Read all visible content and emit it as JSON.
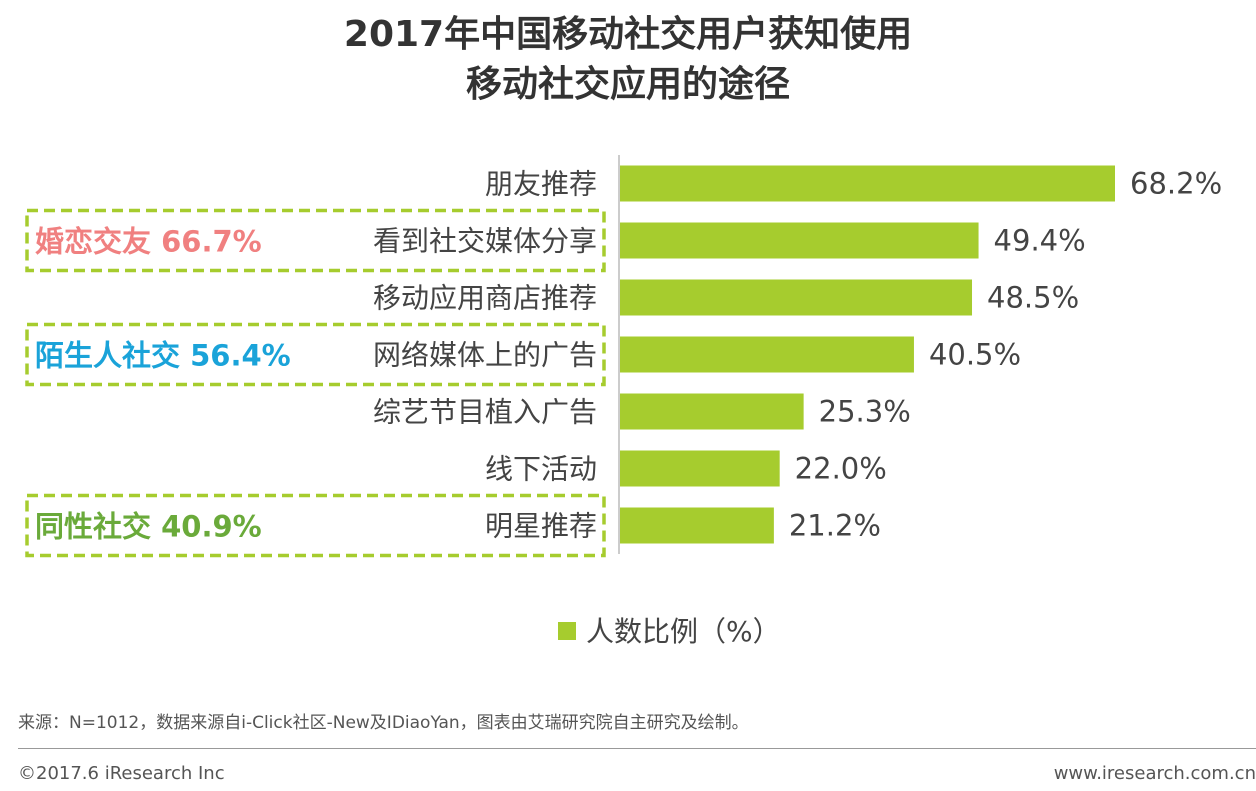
{
  "title_line1": "2017年中国移动社交用户获知使用",
  "title_line2": "移动社交应用的途径",
  "chart_data": {
    "type": "bar",
    "orientation": "horizontal",
    "categories": [
      "朋友推荐",
      "看到社交媒体分享",
      "移动应用商店推荐",
      "网络媒体上的广告",
      "综艺节目植入广告",
      "线下活动",
      "明星推荐"
    ],
    "values": [
      68.2,
      49.4,
      48.5,
      40.5,
      25.3,
      22.0,
      21.2
    ],
    "value_labels": [
      "68.2%",
      "49.4%",
      "48.5%",
      "40.5%",
      "25.3%",
      "22.0%",
      "21.2%"
    ],
    "xlim": [
      0,
      70
    ],
    "series_name": "人数比例（%）",
    "bar_color": "#a6cc2e",
    "legend_position": "bottom-center",
    "annotations": [
      {
        "category_index": 1,
        "text": "婚恋交友 66.7%",
        "color": "#f08080"
      },
      {
        "category_index": 3,
        "text": "陌生人社交 56.4%",
        "color": "#1aa3d9"
      },
      {
        "category_index": 6,
        "text": "同性社交 40.9%",
        "color": "#6aaa3a"
      }
    ],
    "annotation_box_color": "#a6cc2e"
  },
  "footer": {
    "source": "来源：N=1012，数据来源自i-Click社区-New及IDiaoYan，图表由艾瑞研究院自主研究及绘制。",
    "copyright": "©2017.6 iResearch Inc",
    "url": "www.iresearch.com.cn"
  }
}
